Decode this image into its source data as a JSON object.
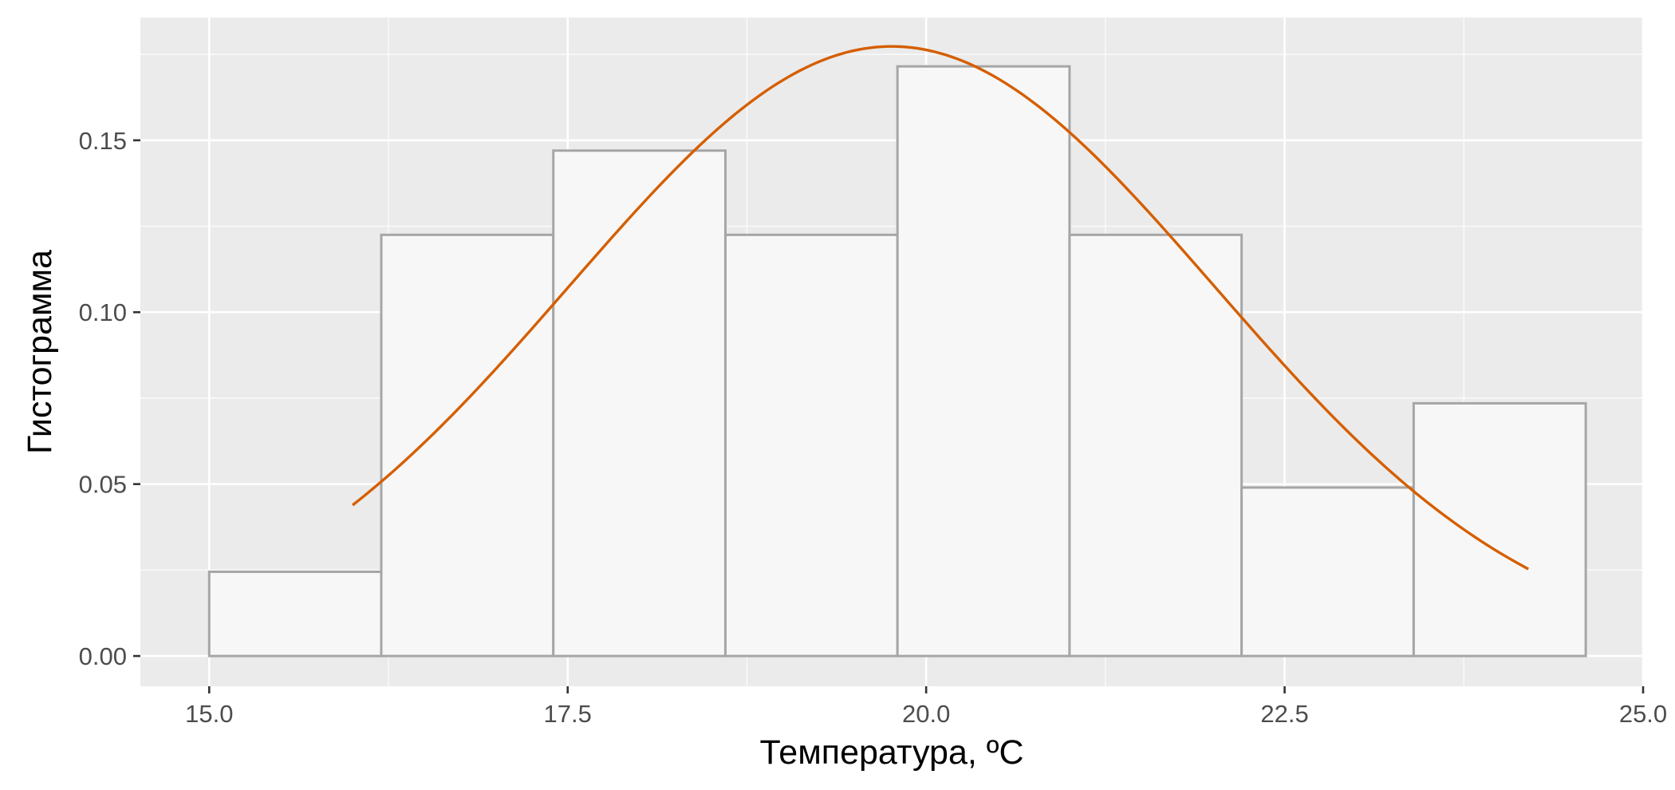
{
  "chart_data": {
    "type": "bar",
    "title": "",
    "xlabel": "Температура, ºC",
    "ylabel": "Гистограмма",
    "xlim": [
      14.52,
      25.0
    ],
    "ylim": [
      -0.0088,
      0.1857
    ],
    "x_ticks": [
      15.0,
      17.5,
      20.0,
      22.5,
      25.0
    ],
    "x_tick_labels": [
      "15.0",
      "17.5",
      "20.0",
      "22.5",
      "25.0"
    ],
    "y_ticks": [
      0.0,
      0.05,
      0.1,
      0.15
    ],
    "y_tick_labels": [
      "0.00",
      "0.05",
      "0.10",
      "0.15"
    ],
    "grid": true,
    "bins": [
      {
        "start": 15.0,
        "end": 16.2,
        "density": 0.0245
      },
      {
        "start": 16.2,
        "end": 17.4,
        "density": 0.1225
      },
      {
        "start": 17.4,
        "end": 18.6,
        "density": 0.147
      },
      {
        "start": 18.6,
        "end": 19.8,
        "density": 0.1225
      },
      {
        "start": 19.8,
        "end": 21.0,
        "density": 0.1715
      },
      {
        "start": 21.0,
        "end": 22.2,
        "density": 0.1225
      },
      {
        "start": 22.2,
        "end": 23.4,
        "density": 0.049
      },
      {
        "start": 23.4,
        "end": 24.6,
        "density": 0.0735
      }
    ],
    "density_curve": {
      "type": "normal",
      "mean": 19.76,
      "sd": 2.25,
      "x_range": [
        16.0,
        24.2
      ],
      "color": "#d55e00"
    },
    "bar_fill": "#f7f7f7",
    "bar_outline": "#a6a6a6",
    "panel_background": "#ebebeb"
  }
}
